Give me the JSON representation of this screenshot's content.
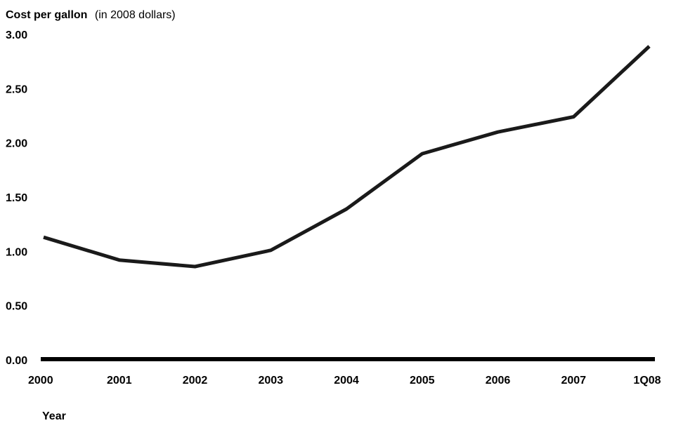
{
  "chart_data": {
    "type": "line",
    "title_bold": "Cost per gallon",
    "title_normal": "(in 2008 dollars)",
    "xlabel": "Year",
    "ylabel": "",
    "categories": [
      "2000",
      "2001",
      "2002",
      "2003",
      "2004",
      "2005",
      "2006",
      "2007",
      "1Q08"
    ],
    "series": [
      {
        "values": [
          1.13,
          0.92,
          0.86,
          1.01,
          1.39,
          1.9,
          2.1,
          2.24,
          2.89
        ]
      }
    ],
    "ylim": [
      0,
      3.0
    ],
    "yticks": [
      "0.00",
      "0.50",
      "1.00",
      "1.50",
      "2.00",
      "2.50",
      "3.00"
    ],
    "grid": false,
    "legend": "none",
    "line_color": "#1a1a1a"
  }
}
